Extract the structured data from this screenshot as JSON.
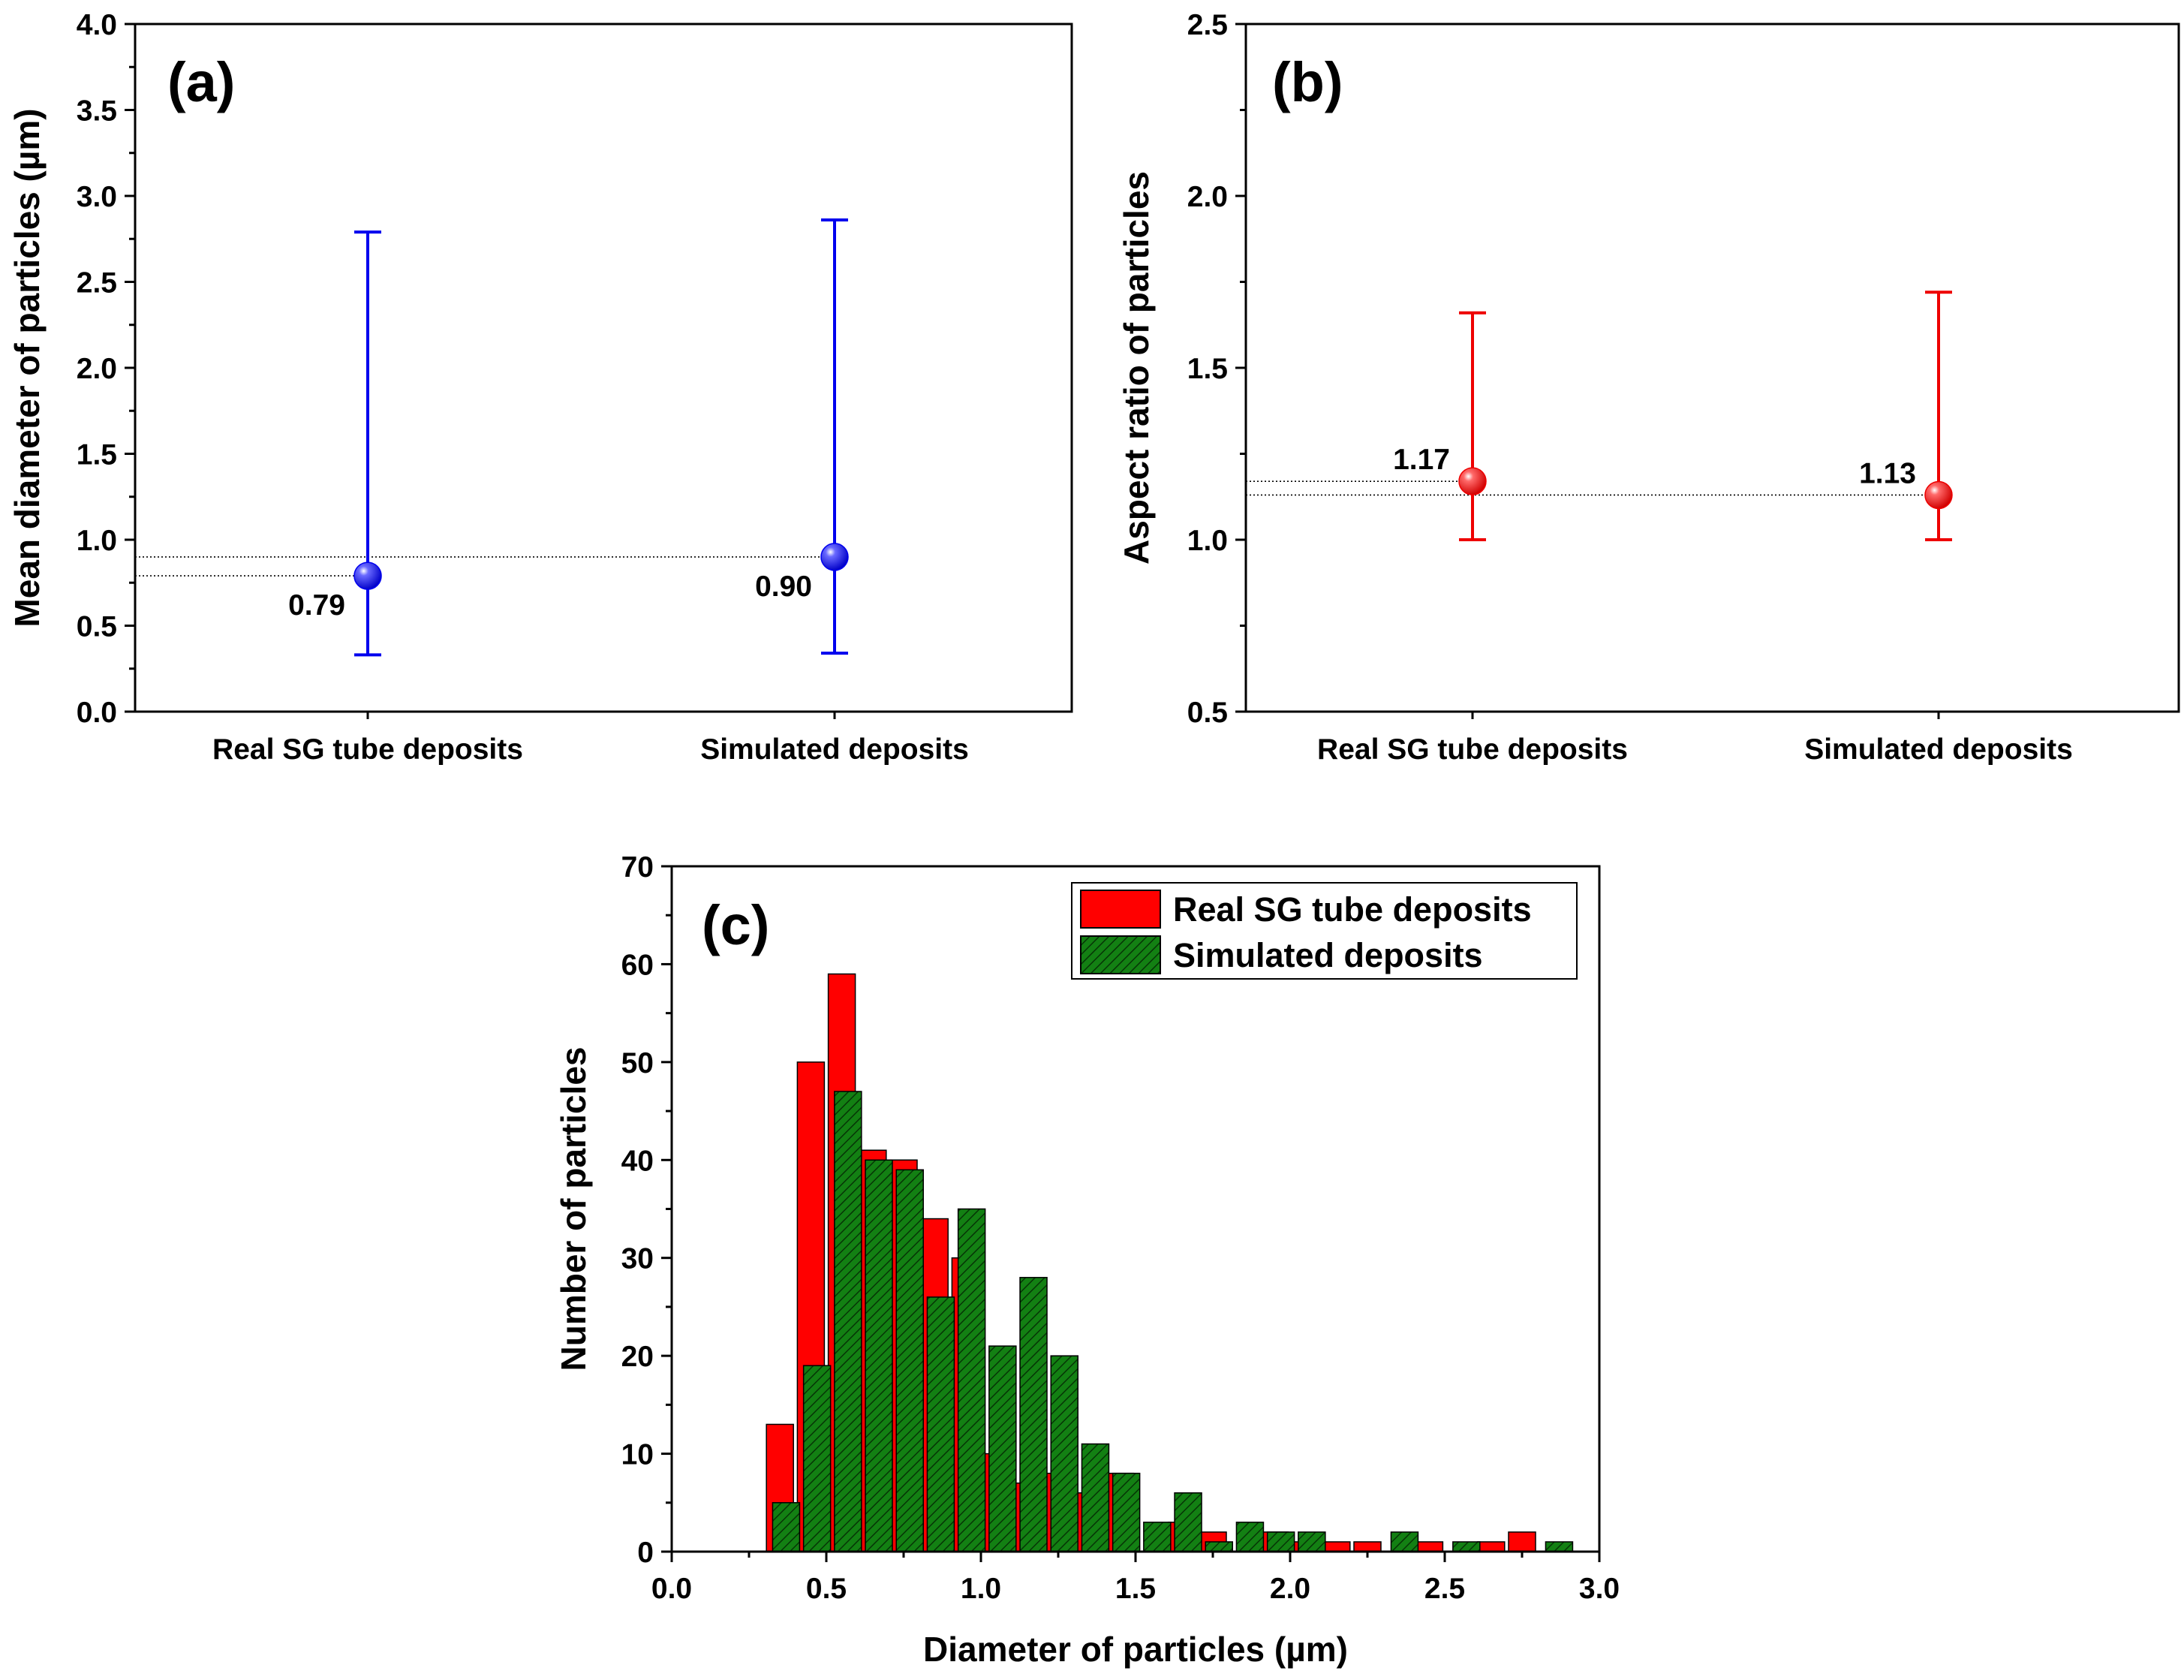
{
  "chart_data": [
    {
      "type": "scatter",
      "panel_label": "(a)",
      "ylabel": "Mean diameter of particles (µm)",
      "xlabel": "",
      "ylim": [
        0.0,
        4.0
      ],
      "y_ticks": [
        "0.0",
        "0.5",
        "1.0",
        "1.5",
        "2.0",
        "2.5",
        "3.0",
        "3.5",
        "4.0"
      ],
      "categories": [
        "Real SG tube deposits",
        "Simulated deposits"
      ],
      "values": [
        0.79,
        0.9
      ],
      "value_labels": [
        "0.79",
        "0.90"
      ],
      "error_low": [
        0.33,
        0.34
      ],
      "error_high": [
        2.79,
        2.86
      ],
      "color": "#0000ee",
      "grid": false
    },
    {
      "type": "scatter",
      "panel_label": "(b)",
      "ylabel": "Aspect ratio of particles",
      "xlabel": "",
      "ylim": [
        0.5,
        2.5
      ],
      "y_ticks": [
        "0.5",
        "1.0",
        "1.5",
        "2.0",
        "2.5"
      ],
      "categories": [
        "Real SG tube deposits",
        "Simulated deposits"
      ],
      "values": [
        1.17,
        1.13
      ],
      "value_labels": [
        "1.17",
        "1.13"
      ],
      "error_low": [
        1.0,
        1.0
      ],
      "error_high": [
        1.66,
        1.72
      ],
      "color": "#ee0000",
      "grid": false
    },
    {
      "type": "bar",
      "panel_label": "(c)",
      "xlabel": "Diameter of particles (µm)",
      "ylabel": "Number of particles",
      "xlim": [
        0.0,
        3.0
      ],
      "ylim": [
        0,
        70
      ],
      "x_ticks": [
        "0.0",
        "0.5",
        "1.0",
        "1.5",
        "2.0",
        "2.5",
        "3.0"
      ],
      "y_ticks": [
        "0",
        "10",
        "20",
        "30",
        "40",
        "50",
        "60",
        "70"
      ],
      "legend_position": "top-right",
      "grid": false,
      "series": [
        {
          "name": "Real SG tube deposits",
          "color": "#ff0000",
          "x": [
            0.35,
            0.45,
            0.55,
            0.65,
            0.75,
            0.85,
            0.95,
            1.05,
            1.15,
            1.25,
            1.35,
            1.45,
            1.55,
            1.65,
            1.75,
            1.85,
            1.95,
            2.05,
            2.15,
            2.25,
            2.35,
            2.45,
            2.55,
            2.65,
            2.75,
            2.85
          ],
          "values": [
            13,
            50,
            59,
            41,
            40,
            34,
            30,
            10,
            7,
            8,
            6,
            8,
            0,
            3,
            2,
            0,
            2,
            1,
            1,
            1,
            0,
            1,
            0,
            1,
            2,
            0
          ]
        },
        {
          "name": "Simulated deposits",
          "color": "#138013",
          "x": [
            0.37,
            0.47,
            0.57,
            0.67,
            0.77,
            0.87,
            0.97,
            1.07,
            1.17,
            1.27,
            1.37,
            1.47,
            1.57,
            1.67,
            1.77,
            1.87,
            1.97,
            2.07,
            2.17,
            2.27,
            2.37,
            2.47,
            2.57,
            2.67,
            2.77,
            2.87
          ],
          "values": [
            5,
            19,
            47,
            40,
            39,
            26,
            35,
            21,
            28,
            20,
            11,
            8,
            3,
            6,
            1,
            3,
            2,
            2,
            0,
            0,
            2,
            0,
            1,
            0,
            0,
            1
          ]
        }
      ]
    }
  ]
}
